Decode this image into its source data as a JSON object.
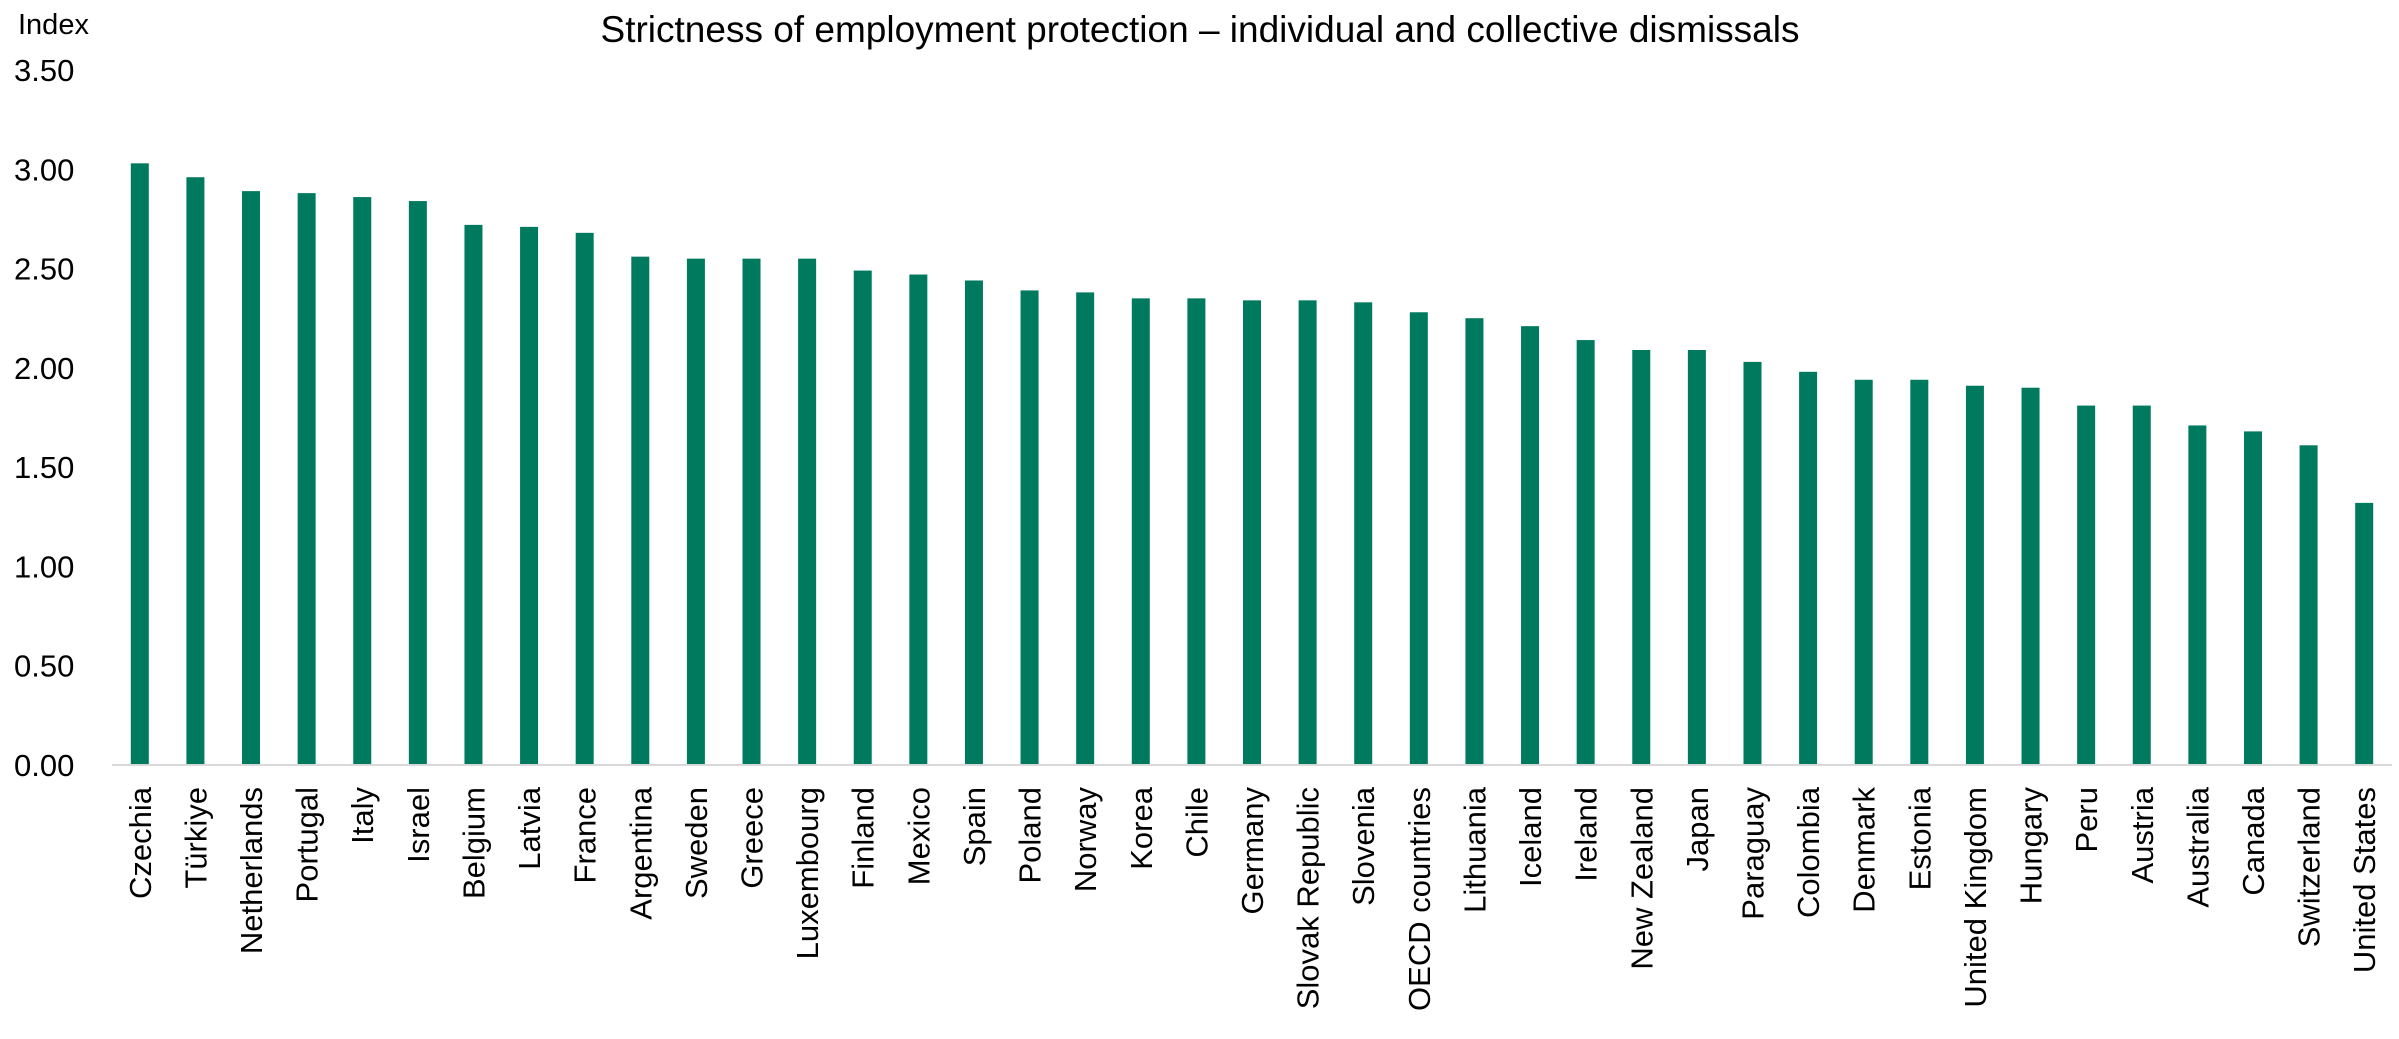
{
  "chart_data": {
    "type": "bar",
    "title": "Strictness of employment protection – individual and collective dismissals",
    "ylabel": "Index",
    "xlabel": "",
    "ylim": [
      0,
      3.5
    ],
    "yticks": [
      "0.00",
      "0.50",
      "1.00",
      "1.50",
      "2.00",
      "2.50",
      "3.00",
      "3.50"
    ],
    "grid": false,
    "legend": "none",
    "bar_color": "#007a5e",
    "categories": [
      "Czechia",
      "Türkiye",
      "Netherlands",
      "Portugal",
      "Italy",
      "Israel",
      "Belgium",
      "Latvia",
      "France",
      "Argentina",
      "Sweden",
      "Greece",
      "Luxembourg",
      "Finland",
      "Mexico",
      "Spain",
      "Poland",
      "Norway",
      "Korea",
      "Chile",
      "Germany",
      "Slovak Republic",
      "Slovenia",
      "OECD countries",
      "Lithuania",
      "Iceland",
      "Ireland",
      "New Zealand",
      "Japan",
      "Paraguay",
      "Colombia",
      "Denmark",
      "Estonia",
      "United Kingdom",
      "Hungary",
      "Peru",
      "Austria",
      "Australia",
      "Canada",
      "Switzerland",
      "United States"
    ],
    "values": [
      3.03,
      2.96,
      2.89,
      2.88,
      2.86,
      2.84,
      2.72,
      2.71,
      2.68,
      2.56,
      2.55,
      2.55,
      2.55,
      2.49,
      2.47,
      2.44,
      2.39,
      2.38,
      2.35,
      2.35,
      2.34,
      2.34,
      2.33,
      2.28,
      2.25,
      2.21,
      2.14,
      2.09,
      2.09,
      2.03,
      1.98,
      1.94,
      1.94,
      1.91,
      1.9,
      1.81,
      1.81,
      1.71,
      1.68,
      1.61,
      1.32
    ]
  }
}
